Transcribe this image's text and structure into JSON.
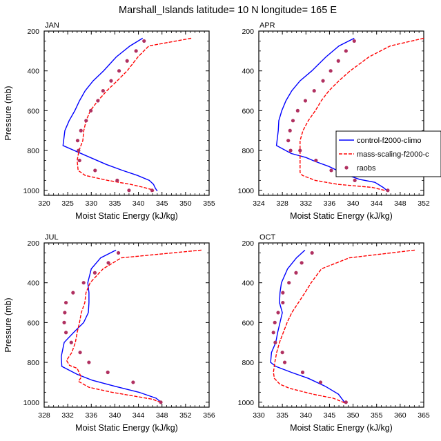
{
  "chart_data": {
    "title": "Marshall_Islands  latitude= 10 N longitude= 165 E",
    "type": "line",
    "legend": {
      "placement": "right",
      "entries": [
        "control-f2000-climo",
        "mass-scaling-f2000-c",
        "raobs"
      ]
    },
    "colors": {
      "control": "#0000ff",
      "mass": "#ff0000",
      "raobs": "#b03060"
    },
    "panels": [
      {
        "label": "JAN",
        "xlabel": "Moist Static Energy (kJ/kg)",
        "ylabel": "Pressure (mb)",
        "xlim": [
          320,
          355
        ],
        "xticks": [
          320,
          325,
          330,
          335,
          340,
          345,
          350,
          355
        ],
        "ylim": [
          200,
          1025
        ],
        "yticks": [
          200,
          400,
          600,
          800,
          1000
        ],
        "series": [
          {
            "name": "control-f2000-climo",
            "x": [
              340.9,
              338.2,
              335.3,
              332.6,
              330.4,
              328.7,
              327.5,
              326.5,
              325.3,
              324.4,
              324.0,
              328.6,
              333.2,
              336.6,
              339.8,
              342.3,
              343.2,
              343.6,
              344.0
            ],
            "p": [
              236,
              275,
              330,
              400,
              450,
              500,
              550,
              600,
              650,
              700,
              775,
              823,
              870,
              900,
              925,
              950,
              970,
              990,
              1004
            ]
          },
          {
            "name": "mass-scaling-f2000-c",
            "x": [
              351.2,
              342.2,
              339.9,
              337.6,
              335.5,
              333.3,
              331.4,
              329.8,
              328.9,
              328.4,
              328.2,
              327.4,
              327.0,
              327.2,
              328.7,
              333.5,
              338.3,
              341.1,
              342.6,
              343.3
            ],
            "p": [
              236,
              275,
              330,
              400,
              450,
              500,
              550,
              600,
              650,
              700,
              750,
              800,
              850,
              900,
              925,
              950,
              970,
              985,
              995,
              1004
            ]
          },
          {
            "name": "raobs",
            "markers": true,
            "x": [
              341.2,
              339.5,
              337.6,
              335.9,
              334.2,
              332.5,
              331.4,
              329.9,
              328.9,
              327.8,
              327.1,
              327.3,
              327.5,
              330.8,
              335.5,
              338.0,
              342.9
            ],
            "p": [
              250,
              300,
              350,
              400,
              450,
              500,
              550,
              600,
              650,
              700,
              750,
              800,
              850,
              900,
              950,
              1000,
              1000
            ]
          }
        ]
      },
      {
        "label": "APR",
        "xlabel": "Moist Static Energy (kJ/kg)",
        "ylabel": "",
        "xlim": [
          324,
          352
        ],
        "xticks": [
          324,
          328,
          332,
          336,
          340,
          344,
          348,
          352
        ],
        "ylim": [
          200,
          1025
        ],
        "yticks": [
          200,
          400,
          600,
          800,
          1000
        ],
        "series": [
          {
            "name": "control-f2000-climo",
            "x": [
              340.2,
              337.6,
              335.4,
              333.0,
              331.0,
              329.6,
              328.6,
              327.9,
              327.4,
              327.3,
              327.0,
              329.5,
              332.0,
              333.6,
              335.9,
              338.7,
              341.1,
              343.7,
              345.1,
              345.9
            ],
            "p": [
              236,
              275,
              330,
              400,
              450,
              500,
              550,
              600,
              650,
              700,
              775,
              815,
              835,
              855,
              880,
              920,
              945,
              960,
              985,
              1004
            ]
          },
          {
            "name": "mass-scaling-f2000-c",
            "x": [
              352.0,
              346.3,
              342.7,
              339.5,
              337.6,
              335.9,
              334.6,
              333.6,
              332.4,
              331.5,
              331.0,
              331.0,
              331.0,
              331.0,
              331.4,
              333.6,
              337.4,
              343.2,
              345.9
            ],
            "p": [
              236,
              275,
              330,
              400,
              450,
              500,
              550,
              600,
              650,
              700,
              750,
              800,
              860,
              910,
              925,
              950,
              970,
              985,
              1004
            ]
          },
          {
            "name": "raobs",
            "markers": true,
            "x": [
              340.2,
              338.8,
              337.5,
              336.2,
              334.9,
              333.4,
              331.9,
              330.6,
              329.8,
              329.3,
              329.0,
              329.4,
              331.0,
              333.7,
              336.3,
              340.3,
              345.9
            ],
            "p": [
              250,
              300,
              350,
              400,
              450,
              500,
              550,
              600,
              650,
              700,
              750,
              800,
              800,
              850,
              900,
              950,
              1000
            ]
          }
        ]
      },
      {
        "label": "JUL",
        "xlabel": "Moist Static Energy (kJ/kg)",
        "ylabel": "Pressure (mb)",
        "xlim": [
          328,
          356
        ],
        "xticks": [
          328,
          332,
          336,
          340,
          344,
          348,
          352,
          356
        ],
        "ylim": [
          200,
          1025
        ],
        "yticks": [
          200,
          400,
          600,
          800,
          1000
        ],
        "series": [
          {
            "name": "control-f2000-climo",
            "x": [
              340.2,
              337.6,
              336.0,
              335.4,
              335.6,
              335.6,
              335.5,
              334.7,
              333.0,
              331.4,
              330.9,
              331.0,
              333.6,
              336.2,
              340.0,
              344.1,
              347.0,
              348.0
            ],
            "p": [
              236,
              275,
              330,
              400,
              450,
              500,
              550,
              600,
              650,
              700,
              770,
              820,
              860,
              890,
              920,
              950,
              980,
              1004
            ]
          },
          {
            "name": "mass-scaling-f2000-c",
            "x": [
              354.7,
              341.1,
              338.0,
              335.8,
              335.1,
              334.9,
              334.3,
              334.0,
              333.6,
              333.3,
              332.7,
              331.8,
              332.3,
              333.6,
              334.3,
              333.8,
              335.6,
              339.5,
              343.4,
              346.4,
              348.0
            ],
            "p": [
              236,
              275,
              330,
              400,
              450,
              500,
              550,
              600,
              650,
              700,
              750,
              790,
              815,
              830,
              875,
              895,
              925,
              950,
              970,
              985,
              1004
            ]
          },
          {
            "name": "raobs",
            "markers": true,
            "x": [
              340.6,
              338.9,
              336.6,
              334.7,
              332.9,
              331.7,
              331.5,
              331.4,
              331.7,
              332.6,
              334.1,
              335.6,
              338.8,
              343.1,
              347.8
            ],
            "p": [
              250,
              300,
              350,
              400,
              450,
              500,
              550,
              600,
              650,
              700,
              750,
              800,
              850,
              900,
              1000
            ]
          }
        ]
      },
      {
        "label": "OCT",
        "xlabel": "Moist Static Energy (kJ/kg)",
        "ylabel": "",
        "xlim": [
          330,
          365
        ],
        "xticks": [
          330,
          335,
          340,
          345,
          350,
          355,
          360,
          365
        ],
        "ylim": [
          200,
          1025
        ],
        "yticks": [
          200,
          400,
          600,
          800,
          1000
        ],
        "series": [
          {
            "name": "control-f2000-climo",
            "x": [
              339.8,
              338.0,
              336.1,
              334.8,
              334.5,
              334.4,
              335.0,
              334.5,
              334.0,
              333.6,
              332.7,
              332.5,
              333.6,
              336.9,
              340.5,
              344.1,
              346.9,
              348.3
            ],
            "p": [
              236,
              275,
              330,
              400,
              450,
              500,
              550,
              600,
              650,
              700,
              750,
              800,
              820,
              850,
              880,
              920,
              960,
              1004
            ]
          },
          {
            "name": "mass-scaling-f2000-c",
            "x": [
              363.1,
              349.2,
              343.3,
              341.1,
              339.8,
              338.4,
              337.0,
              336.0,
              335.2,
              334.4,
              333.8,
              333.4,
              333.1,
              333.3,
              334.5,
              336.5,
              341.5,
              345.8,
              348.3
            ],
            "p": [
              236,
              275,
              330,
              400,
              450,
              500,
              550,
              600,
              650,
              700,
              750,
              800,
              850,
              880,
              910,
              930,
              960,
              980,
              1004
            ]
          },
          {
            "name": "raobs",
            "markers": true,
            "x": [
              341.3,
              339.1,
              337.9,
              336.4,
              335.1,
              335.1,
              334.1,
              333.4,
              333.1,
              333.5,
              335.0,
              335.5,
              339.3,
              343.1,
              348.5
            ],
            "p": [
              250,
              300,
              350,
              400,
              450,
              500,
              550,
              600,
              650,
              700,
              750,
              800,
              850,
              900,
              1000
            ]
          }
        ]
      }
    ]
  }
}
